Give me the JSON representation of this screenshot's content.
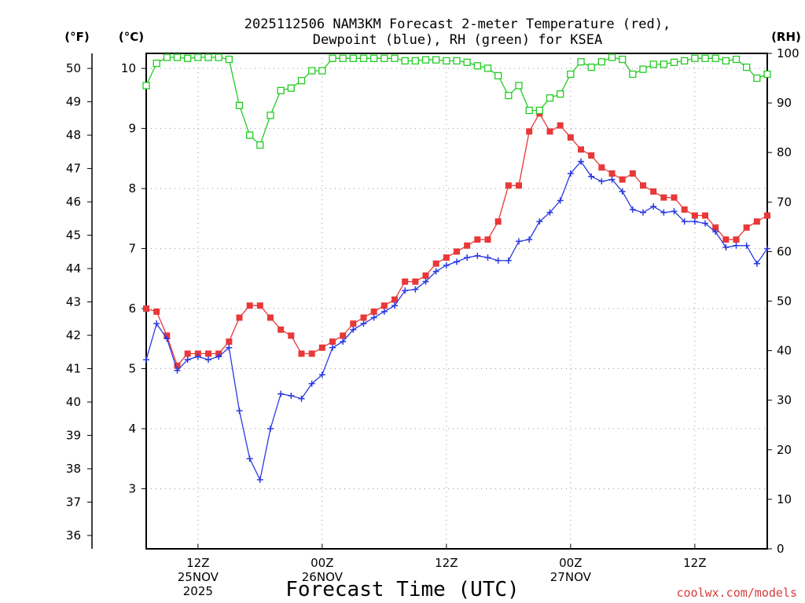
{
  "chart_data": {
    "type": "line",
    "title_lines": [
      "2025112506 NAM3KM Forecast 2-meter Temperature (red),",
      "Dewpoint (blue), RH (green) for KSEA"
    ],
    "xlabel": "Forecast Time (UTC)",
    "credit": "coolwx.com/models",
    "units": {
      "fahrenheit": "(°F)",
      "celsius": "(°C)",
      "rh": "(RH)"
    },
    "x_range": [
      7,
      67
    ],
    "x_ticks": [
      {
        "x": 12,
        "lines": [
          "12Z",
          "25NOV",
          "2025"
        ]
      },
      {
        "x": 24,
        "lines": [
          "00Z",
          "26NOV"
        ]
      },
      {
        "x": 36,
        "lines": [
          "12Z"
        ]
      },
      {
        "x": 48,
        "lines": [
          "00Z",
          "27NOV"
        ]
      },
      {
        "x": 60,
        "lines": [
          "12Z"
        ]
      }
    ],
    "celsius_axis": {
      "range": [
        2.0,
        10.25
      ],
      "ticks": [
        3,
        4,
        5,
        6,
        7,
        8,
        9,
        10
      ]
    },
    "fahrenheit_axis": {
      "range": [
        36,
        50.45
      ],
      "ticks": [
        36,
        37,
        38,
        39,
        40,
        41,
        42,
        43,
        44,
        45,
        46,
        47,
        48,
        49,
        50
      ]
    },
    "rh_axis": {
      "range": [
        0,
        100
      ],
      "ticks": [
        0,
        10,
        20,
        30,
        40,
        50,
        60,
        70,
        80,
        90,
        100
      ]
    },
    "grid": true,
    "x": [
      7,
      8,
      9,
      10,
      11,
      12,
      13,
      14,
      15,
      16,
      17,
      18,
      19,
      20,
      21,
      22,
      23,
      24,
      25,
      26,
      27,
      28,
      29,
      30,
      31,
      32,
      33,
      34,
      35,
      36,
      37,
      38,
      39,
      40,
      41,
      42,
      43,
      44,
      45,
      46,
      47,
      48,
      49,
      50,
      51,
      52,
      53,
      54,
      55,
      56,
      57,
      58,
      59,
      60,
      61,
      62,
      63,
      64,
      65,
      66,
      67
    ],
    "series": [
      {
        "name": "2-meter Temperature",
        "unit": "C",
        "color": "#e83838",
        "marker": "filled-square",
        "values": [
          6.0,
          5.95,
          5.55,
          5.05,
          5.25,
          5.25,
          5.25,
          5.25,
          5.45,
          5.85,
          6.05,
          6.05,
          5.85,
          5.65,
          5.55,
          5.25,
          5.25,
          5.35,
          5.45,
          5.55,
          5.75,
          5.85,
          5.95,
          6.05,
          6.15,
          6.45,
          6.45,
          6.55,
          6.75,
          6.85,
          6.95,
          7.05,
          7.15,
          7.15,
          7.45,
          8.05,
          8.05,
          8.95,
          9.25,
          8.95,
          9.05,
          8.85,
          8.65,
          8.55,
          8.35,
          8.25,
          8.15,
          8.25,
          8.05,
          7.95,
          7.85,
          7.85,
          7.65,
          7.55,
          7.55,
          7.35,
          7.15,
          7.15,
          7.35,
          7.45,
          7.55
        ]
      },
      {
        "name": "Dewpoint",
        "unit": "C",
        "color": "#2a3ae0",
        "marker": "plus",
        "values": [
          5.15,
          5.75,
          5.5,
          4.97,
          5.15,
          5.2,
          5.15,
          5.2,
          5.35,
          4.3,
          3.5,
          3.15,
          4.0,
          4.58,
          4.55,
          4.5,
          4.75,
          4.9,
          5.35,
          5.45,
          5.65,
          5.75,
          5.85,
          5.95,
          6.05,
          6.3,
          6.32,
          6.45,
          6.62,
          6.72,
          6.78,
          6.85,
          6.88,
          6.85,
          6.8,
          6.8,
          7.12,
          7.15,
          7.45,
          7.6,
          7.8,
          8.25,
          8.45,
          8.2,
          8.12,
          8.15,
          7.95,
          7.65,
          7.6,
          7.7,
          7.6,
          7.62,
          7.45,
          7.45,
          7.42,
          7.28,
          7.02,
          7.05,
          7.05,
          6.75,
          7.0
        ]
      },
      {
        "name": "RH",
        "unit": "%",
        "color": "#22cc22",
        "marker": "open-square",
        "values": [
          93.5,
          98,
          99.2,
          99.2,
          99,
          99.2,
          99.2,
          99.2,
          98.8,
          89.5,
          83.5,
          81.5,
          87.5,
          92.5,
          93,
          94.5,
          96.5,
          96.5,
          99,
          99,
          99,
          99,
          99,
          99,
          99,
          98.5,
          98.5,
          98.7,
          98.7,
          98.5,
          98.5,
          98.2,
          97.5,
          97,
          95.5,
          91.5,
          93.5,
          88.5,
          88.5,
          91,
          91.8,
          95.8,
          98.3,
          97.2,
          98.3,
          99.2,
          98.8,
          95.8,
          96.8,
          97.8,
          97.8,
          98.2,
          98.5,
          99,
          99,
          99,
          98.5,
          98.8,
          97.2,
          95,
          95.8
        ]
      }
    ]
  }
}
